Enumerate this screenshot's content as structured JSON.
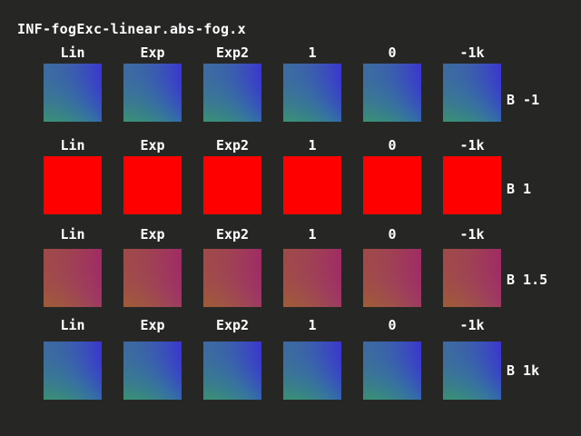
{
  "title": "INF-fogExc-linear.abs-fog.x",
  "columns": [
    "Lin",
    "Exp",
    "Exp2",
    "1",
    "0",
    "-1k"
  ],
  "rows": [
    {
      "label": "B -1",
      "colors": {
        "tl": "#3d6aa0",
        "br": "#3a00ff",
        "bl": "#38b54a",
        "tr": "#3470a5"
      }
    },
    {
      "label": "B 1",
      "colors": {
        "tl": "#ff0000",
        "br": "#ff0000",
        "bl": "#ff0000",
        "tr": "#ff0000"
      }
    },
    {
      "label": "B 1.5",
      "colors": {
        "tl": "#a04a48",
        "br": "#9e0c7e",
        "bl": "#9e6e27",
        "tr": "#9e3f60"
      }
    },
    {
      "label": "B 1k",
      "colors": {
        "tl": "#3d6aa0",
        "br": "#3a00ff",
        "bl": "#38b54a",
        "tr": "#3470a5"
      }
    }
  ]
}
